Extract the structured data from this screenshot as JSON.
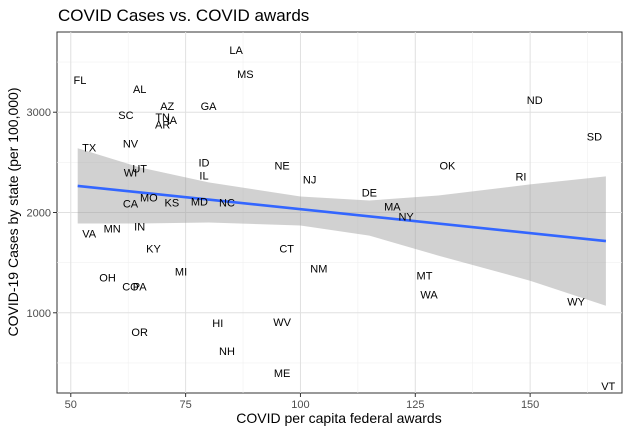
{
  "chart_data": {
    "type": "scatter",
    "title": "COVID Cases vs. COVID awards",
    "xlabel": "COVID per capita federal awards",
    "ylabel": "COVID-19 Cases by state (per 100,000)",
    "xlim": [
      47,
      170
    ],
    "ylim": [
      200,
      3800
    ],
    "x_ticks": [
      50,
      75,
      100,
      125,
      150
    ],
    "y_ticks": [
      1000,
      2000,
      3000
    ],
    "grid": true,
    "colors": {
      "panel_border": "#333333",
      "grid_major": "#e0e0e0",
      "grid_minor": "#f0f0f0",
      "fit_line": "#3366ff",
      "ribbon": "#999999"
    },
    "points": [
      {
        "label": "LA",
        "x": 86,
        "y": 3620
      },
      {
        "label": "FL",
        "x": 52,
        "y": 3320
      },
      {
        "label": "MS",
        "x": 88,
        "y": 3380
      },
      {
        "label": "AL",
        "x": 65,
        "y": 3230
      },
      {
        "label": "ND",
        "x": 151,
        "y": 3120
      },
      {
        "label": "AZ",
        "x": 71,
        "y": 3060
      },
      {
        "label": "GA",
        "x": 80,
        "y": 3060
      },
      {
        "label": "SC",
        "x": 62,
        "y": 2970
      },
      {
        "label": "TN",
        "x": 70,
        "y": 2950
      },
      {
        "label": "IA",
        "x": 72,
        "y": 2920
      },
      {
        "label": "AR",
        "x": 70,
        "y": 2880
      },
      {
        "label": "SD",
        "x": 164,
        "y": 2760
      },
      {
        "label": "NV",
        "x": 63,
        "y": 2690
      },
      {
        "label": "TX",
        "x": 54,
        "y": 2650
      },
      {
        "label": "ID",
        "x": 79,
        "y": 2500
      },
      {
        "label": "NE",
        "x": 96,
        "y": 2470
      },
      {
        "label": "OK",
        "x": 132,
        "y": 2470
      },
      {
        "label": "UT",
        "x": 65,
        "y": 2440
      },
      {
        "label": "WI",
        "x": 63,
        "y": 2400
      },
      {
        "label": "IL",
        "x": 79,
        "y": 2370
      },
      {
        "label": "RI",
        "x": 148,
        "y": 2360
      },
      {
        "label": "NJ",
        "x": 102,
        "y": 2330
      },
      {
        "label": "DE",
        "x": 115,
        "y": 2200
      },
      {
        "label": "MO",
        "x": 67,
        "y": 2150
      },
      {
        "label": "KS",
        "x": 72,
        "y": 2100
      },
      {
        "label": "MD",
        "x": 78,
        "y": 2110
      },
      {
        "label": "NC",
        "x": 84,
        "y": 2100
      },
      {
        "label": "CA",
        "x": 63,
        "y": 2090
      },
      {
        "label": "MA",
        "x": 120,
        "y": 2060
      },
      {
        "label": "NY",
        "x": 123,
        "y": 1960
      },
      {
        "label": "IN",
        "x": 65,
        "y": 1860
      },
      {
        "label": "MN",
        "x": 59,
        "y": 1840
      },
      {
        "label": "VA",
        "x": 54,
        "y": 1790
      },
      {
        "label": "KY",
        "x": 68,
        "y": 1640
      },
      {
        "label": "CT",
        "x": 97,
        "y": 1640
      },
      {
        "label": "NM",
        "x": 104,
        "y": 1440
      },
      {
        "label": "MI",
        "x": 74,
        "y": 1410
      },
      {
        "label": "MT",
        "x": 127,
        "y": 1370
      },
      {
        "label": "OH",
        "x": 58,
        "y": 1350
      },
      {
        "label": "CO",
        "x": 63,
        "y": 1260
      },
      {
        "label": "PA",
        "x": 65,
        "y": 1260
      },
      {
        "label": "WA",
        "x": 128,
        "y": 1180
      },
      {
        "label": "WY",
        "x": 160,
        "y": 1110
      },
      {
        "label": "WV",
        "x": 96,
        "y": 910
      },
      {
        "label": "HI",
        "x": 82,
        "y": 900
      },
      {
        "label": "OR",
        "x": 65,
        "y": 810
      },
      {
        "label": "NH",
        "x": 84,
        "y": 620
      },
      {
        "label": "ME",
        "x": 96,
        "y": 400
      },
      {
        "label": "VT",
        "x": 167,
        "y": 270
      }
    ],
    "fit": {
      "x": [
        51.5,
        166.5
      ],
      "y": [
        2265,
        1715
      ]
    },
    "ribbon": {
      "x": [
        51.5,
        65,
        80,
        100,
        115,
        130,
        150,
        166.5
      ],
      "upper": [
        2640,
        2450,
        2300,
        2160,
        2120,
        2170,
        2280,
        2360
      ],
      "lower": [
        1890,
        1890,
        1900,
        1870,
        1770,
        1570,
        1320,
        1070
      ]
    }
  }
}
